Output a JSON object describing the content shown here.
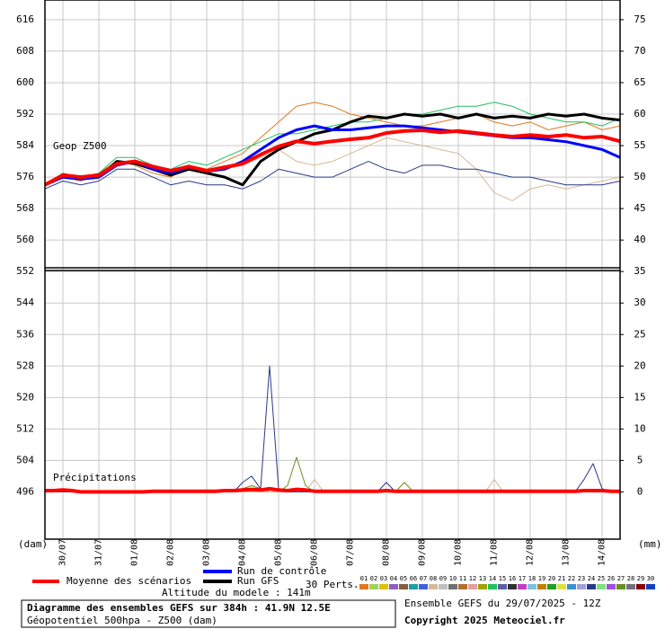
{
  "chart_data": [
    {
      "type": "line",
      "label": "Geop Z500",
      "xlim": [
        0,
        384
      ],
      "xticks": [
        {
          "value": 12,
          "label": "30/07"
        },
        {
          "value": 36,
          "label": "31/07"
        },
        {
          "value": 60,
          "label": "01/08"
        },
        {
          "value": 84,
          "label": "02/08"
        },
        {
          "value": 108,
          "label": "03/08"
        },
        {
          "value": 132,
          "label": "04/08"
        },
        {
          "value": 156,
          "label": "05/08"
        },
        {
          "value": 180,
          "label": "06/08"
        },
        {
          "value": 204,
          "label": "07/08"
        },
        {
          "value": 228,
          "label": "08/08"
        },
        {
          "value": 252,
          "label": "09/08"
        },
        {
          "value": 276,
          "label": "10/08"
        },
        {
          "value": 300,
          "label": "11/08"
        },
        {
          "value": 324,
          "label": "12/08"
        },
        {
          "value": 348,
          "label": "13/08"
        },
        {
          "value": 372,
          "label": "14/08"
        }
      ],
      "ylim": [
        484,
        621
      ],
      "yticks": [
        496,
        504,
        512,
        520,
        528,
        536,
        544,
        552,
        560,
        568,
        576,
        584,
        592,
        600,
        608,
        616
      ],
      "y_unit": "(dam)",
      "grid": true,
      "x": [
        0,
        12,
        24,
        36,
        48,
        60,
        72,
        84,
        96,
        108,
        120,
        132,
        144,
        156,
        168,
        180,
        192,
        204,
        216,
        228,
        240,
        252,
        264,
        276,
        288,
        300,
        312,
        324,
        336,
        348,
        360,
        372,
        384
      ],
      "series": [
        {
          "color": "#e07820",
          "width": 1,
          "values": [
            574,
            576,
            575,
            577,
            580,
            579,
            577,
            576,
            579,
            578,
            580,
            582,
            586,
            590,
            594,
            595,
            594,
            592,
            591,
            590,
            589,
            589,
            590,
            591,
            592,
            590,
            589,
            590,
            588,
            589,
            590,
            588,
            589
          ]
        },
        {
          "color": "#d8b898",
          "width": 1,
          "values": [
            574,
            576,
            576,
            576,
            579,
            580,
            578,
            577,
            578,
            577,
            578,
            579,
            581,
            583,
            580,
            579,
            580,
            582,
            584,
            586,
            585,
            584,
            583,
            582,
            578,
            572,
            570,
            573,
            574,
            573,
            574,
            575,
            576
          ]
        },
        {
          "color": "#20c060",
          "width": 1,
          "values": [
            574,
            577,
            576,
            577,
            581,
            581,
            579,
            578,
            580,
            579,
            581,
            583,
            585,
            587,
            587,
            588,
            589,
            590,
            590,
            591,
            592,
            592,
            593,
            594,
            594,
            595,
            594,
            592,
            591,
            590,
            590,
            589,
            591
          ]
        },
        {
          "color": "#2a3a8a",
          "width": 1,
          "values": [
            573,
            575,
            574,
            575,
            578,
            578,
            576,
            574,
            575,
            574,
            574,
            573,
            575,
            578,
            577,
            576,
            576,
            578,
            580,
            578,
            577,
            579,
            579,
            578,
            578,
            577,
            576,
            576,
            575,
            574,
            574,
            574,
            575
          ]
        },
        {
          "color": "#000000",
          "width": 3,
          "values": [
            574,
            576,
            575.5,
            576,
            580,
            579.5,
            578,
            576.5,
            578,
            577,
            576,
            574,
            580,
            583,
            585,
            587,
            588,
            590,
            591.5,
            591,
            592,
            591.5,
            592,
            591,
            592,
            591,
            591.5,
            591,
            592,
            591.5,
            592,
            591,
            590.5
          ]
        },
        {
          "color": "#0000ff",
          "width": 3,
          "values": [
            574,
            576,
            575.5,
            576,
            579,
            580,
            578,
            577,
            578.5,
            577.5,
            578,
            580,
            583,
            586,
            588,
            589,
            588,
            588,
            588.5,
            589,
            589,
            588.5,
            588,
            587.5,
            587,
            586.5,
            586,
            586,
            585.5,
            585,
            584,
            583,
            581
          ]
        },
        {
          "color": "#ff0000",
          "width": 4,
          "values": [
            574,
            576.5,
            576,
            576.5,
            579.4,
            580,
            578.7,
            577.6,
            578.7,
            577.6,
            578.5,
            579.4,
            581.7,
            583.8,
            585.1,
            584.5,
            585.1,
            585.6,
            586,
            587.2,
            587.7,
            587.9,
            587.4,
            587.7,
            587.2,
            586.7,
            586.3,
            586.7,
            586.3,
            586.7,
            586,
            586.3,
            585.1
          ]
        }
      ]
    },
    {
      "type": "line",
      "label": "Précipitations",
      "y2lim": [
        -7.5,
        78.125
      ],
      "y2ticks": [
        0,
        5,
        10,
        15,
        20,
        25,
        30,
        35,
        40,
        45,
        50,
        55,
        60,
        65,
        70,
        75
      ],
      "y2_unit": "(mm)",
      "x": [
        0,
        6,
        12,
        18,
        24,
        30,
        36,
        42,
        48,
        54,
        60,
        66,
        72,
        78,
        84,
        90,
        96,
        102,
        108,
        114,
        120,
        126,
        132,
        138,
        144,
        150,
        156,
        162,
        168,
        174,
        180,
        186,
        192,
        198,
        204,
        210,
        216,
        222,
        228,
        234,
        240,
        246,
        252,
        258,
        264,
        270,
        276,
        282,
        288,
        294,
        300,
        306,
        312,
        318,
        324,
        330,
        336,
        342,
        348,
        354,
        360,
        366,
        372,
        378,
        384
      ],
      "series": [
        {
          "color": "#6b8e23",
          "width": 1,
          "axis": "y2",
          "values": [
            0,
            0,
            0,
            0,
            0,
            0,
            0,
            0,
            0,
            0,
            0,
            0,
            0,
            0,
            0,
            0,
            0,
            0,
            0,
            0,
            0,
            0,
            0.5,
            1,
            0.5,
            0,
            0,
            1,
            5.5,
            1,
            0,
            0,
            0,
            0,
            0,
            0,
            0,
            0,
            0,
            0,
            1.5,
            0,
            0,
            0,
            0,
            0,
            0,
            0,
            0,
            0,
            0,
            0,
            0,
            0,
            0,
            0,
            0,
            0,
            0,
            0,
            0,
            0,
            0,
            0,
            0
          ]
        },
        {
          "color": "#d8b898",
          "width": 1,
          "axis": "y2",
          "values": [
            0,
            0,
            0,
            0,
            0,
            0,
            0,
            0,
            0,
            0,
            0,
            0,
            0,
            0,
            0,
            0,
            0,
            0,
            0,
            0,
            0,
            0,
            0,
            0,
            0,
            0,
            0,
            0,
            0,
            0,
            2,
            0,
            0,
            0,
            0,
            0,
            0,
            0,
            0,
            0,
            0,
            0,
            0,
            0,
            0,
            0,
            0,
            0,
            0,
            0,
            2,
            0,
            0,
            0,
            0,
            0,
            0,
            0,
            0,
            0,
            0,
            0,
            0,
            0,
            0
          ]
        },
        {
          "color": "#2a3a8a",
          "width": 1,
          "axis": "y2",
          "values": [
            0,
            0,
            0,
            0,
            0,
            0,
            0,
            0,
            0,
            0,
            0,
            0,
            0,
            0,
            0,
            0,
            0,
            0,
            0,
            0,
            0,
            0,
            1.5,
            2.5,
            0.5,
            20,
            0.5,
            0,
            0,
            0,
            0,
            0,
            0,
            0,
            0,
            0,
            0,
            0,
            1.5,
            0,
            0,
            0,
            0,
            0,
            0,
            0,
            0,
            0,
            0,
            0,
            0,
            0,
            0,
            0,
            0,
            0,
            0,
            0,
            0,
            0,
            2,
            4.5,
            0.5,
            0,
            0
          ]
        },
        {
          "color": "#ff0000",
          "width": 4,
          "axis": "y2",
          "values": [
            0.2,
            0.2,
            0.3,
            0.2,
            0,
            0,
            0,
            0,
            0,
            0,
            0,
            0,
            0.1,
            0.1,
            0.1,
            0.1,
            0.1,
            0.1,
            0.1,
            0.1,
            0.2,
            0.2,
            0.3,
            0.4,
            0.3,
            0.5,
            0.3,
            0.2,
            0.4,
            0.3,
            0.1,
            0.1,
            0.1,
            0.1,
            0.1,
            0.1,
            0.1,
            0.1,
            0.2,
            0.1,
            0.1,
            0.1,
            0.1,
            0.1,
            0.1,
            0.1,
            0.1,
            0.1,
            0.1,
            0.1,
            0.1,
            0.1,
            0.1,
            0.1,
            0.1,
            0.1,
            0.1,
            0.1,
            0.1,
            0.1,
            0.2,
            0.2,
            0.2,
            0.1,
            0.1
          ]
        }
      ]
    }
  ],
  "legend": {
    "mean": "Moyenne des scénarios",
    "control": "Run de contrôle",
    "gfs": "Run GFS",
    "perts": "30 Perts.",
    "altitude": "Altitude du modele : 141m",
    "mean_color": "#ff0000",
    "control_color": "#0000ff",
    "gfs_color": "#000000",
    "perturbations": [
      {
        "label": "01",
        "color": "#e07820"
      },
      {
        "label": "02",
        "color": "#a0d060"
      },
      {
        "label": "03",
        "color": "#e0c000"
      },
      {
        "label": "04",
        "color": "#9060c0"
      },
      {
        "label": "05",
        "color": "#806040"
      },
      {
        "label": "06",
        "color": "#20a0a0"
      },
      {
        "label": "07",
        "color": "#4060e0"
      },
      {
        "label": "08",
        "color": "#d8b898"
      },
      {
        "label": "09",
        "color": "#c0c0c0"
      },
      {
        "label": "10",
        "color": "#707070"
      },
      {
        "label": "11",
        "color": "#b07030"
      },
      {
        "label": "12",
        "color": "#e0a0a0"
      },
      {
        "label": "13",
        "color": "#a0a000"
      },
      {
        "label": "14",
        "color": "#20c060"
      },
      {
        "label": "15",
        "color": "#6060a0"
      },
      {
        "label": "16",
        "color": "#303030"
      },
      {
        "label": "17",
        "color": "#c040c0"
      },
      {
        "label": "18",
        "color": "#80c0e0"
      },
      {
        "label": "19",
        "color": "#c08000"
      },
      {
        "label": "20",
        "color": "#20a020"
      },
      {
        "label": "21",
        "color": "#e0e040"
      },
      {
        "label": "22",
        "color": "#4090d0"
      },
      {
        "label": "23",
        "color": "#a0a0e0"
      },
      {
        "label": "24",
        "color": "#2a3a8a"
      },
      {
        "label": "25",
        "color": "#80e080"
      },
      {
        "label": "26",
        "color": "#a050e0"
      },
      {
        "label": "27",
        "color": "#6b8e23"
      },
      {
        "label": "28",
        "color": "#707080"
      },
      {
        "label": "29",
        "color": "#8b0000"
      },
      {
        "label": "30",
        "color": "#1040c0"
      }
    ]
  },
  "footer": {
    "title": "Diagramme des ensembles GEFS sur 384h : 41.9N 12.5E",
    "subtitle": "Géopotentiel 500hpa - Z500 (dam)",
    "run": "Ensemble GEFS du 29/07/2025 - 12Z",
    "copyright": "Copyright 2025 Meteociel.fr"
  }
}
